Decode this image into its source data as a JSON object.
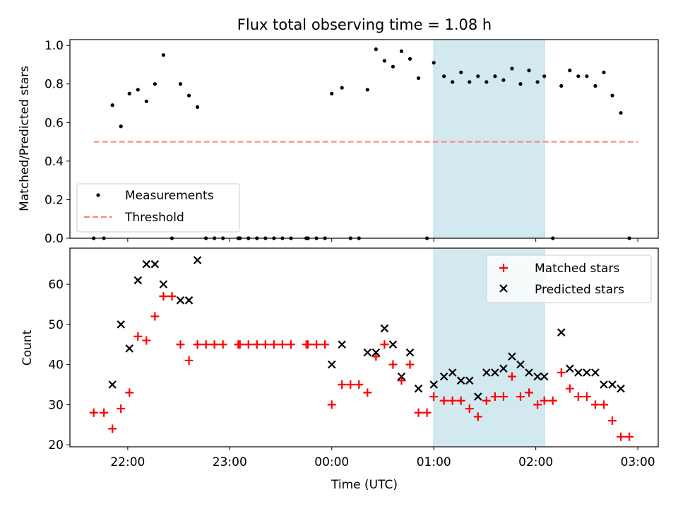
{
  "chart_data": [
    {
      "type": "scatter",
      "title": "Flux total observing time = 1.08 h",
      "xlabel": "",
      "ylabel": "Matched/Predicted stars",
      "xlim": [
        "21:26",
        "03:12"
      ],
      "ylim": [
        0,
        1.03
      ],
      "yticks": [
        "0.0",
        "0.2",
        "0.4",
        "0.6",
        "0.8",
        "1.0"
      ],
      "shaded_region": [
        "01:00",
        "02:05"
      ],
      "legend_position": "lower-left",
      "legend": {
        "measurements": "Measurements",
        "threshold": "Threshold"
      },
      "colors": {
        "measurements": "#000000",
        "threshold": "#ff7f7f",
        "shade": "#d3e9f0"
      },
      "threshold": {
        "value": 0.5,
        "x": [
          "21:40",
          "03:00"
        ]
      },
      "series": [
        {
          "name": "Measurements",
          "points": [
            [
              "21:40",
              0.0
            ],
            [
              "21:46",
              0.0
            ],
            [
              "21:51",
              0.69
            ],
            [
              "21:56",
              0.58
            ],
            [
              "22:01",
              0.75
            ],
            [
              "22:06",
              0.77
            ],
            [
              "22:11",
              0.71
            ],
            [
              "22:16",
              0.8
            ],
            [
              "22:21",
              0.95
            ],
            [
              "22:26",
              0.0
            ],
            [
              "22:31",
              0.8
            ],
            [
              "22:36",
              0.74
            ],
            [
              "22:41",
              0.68
            ],
            [
              "22:46",
              0.0
            ],
            [
              "22:51",
              0.0
            ],
            [
              "22:56",
              0.0
            ],
            [
              "23:05",
              0.0
            ],
            [
              "23:06",
              0.0
            ],
            [
              "23:11",
              0.0
            ],
            [
              "23:16",
              0.0
            ],
            [
              "23:21",
              0.0
            ],
            [
              "23:26",
              0.0
            ],
            [
              "23:31",
              0.0
            ],
            [
              "23:36",
              0.0
            ],
            [
              "23:45",
              0.0
            ],
            [
              "23:46",
              0.0
            ],
            [
              "23:51",
              0.0
            ],
            [
              "23:56",
              0.0
            ],
            [
              "00:00",
              0.75
            ],
            [
              "00:06",
              0.78
            ],
            [
              "00:11",
              0.0
            ],
            [
              "00:16",
              0.0
            ],
            [
              "00:21",
              0.77
            ],
            [
              "00:26",
              0.98
            ],
            [
              "00:31",
              0.92
            ],
            [
              "00:36",
              0.89
            ],
            [
              "00:41",
              0.97
            ],
            [
              "00:46",
              0.93
            ],
            [
              "00:51",
              0.83
            ],
            [
              "00:56",
              0.0
            ],
            [
              "01:00",
              0.91
            ],
            [
              "01:06",
              0.84
            ],
            [
              "01:11",
              0.81
            ],
            [
              "01:16",
              0.86
            ],
            [
              "01:21",
              0.81
            ],
            [
              "01:26",
              0.84
            ],
            [
              "01:31",
              0.81
            ],
            [
              "01:36",
              0.84
            ],
            [
              "01:41",
              0.82
            ],
            [
              "01:46",
              0.88
            ],
            [
              "01:51",
              0.8
            ],
            [
              "01:56",
              0.87
            ],
            [
              "02:01",
              0.81
            ],
            [
              "02:05",
              0.84
            ],
            [
              "02:10",
              0.0
            ],
            [
              "02:15",
              0.79
            ],
            [
              "02:20",
              0.87
            ],
            [
              "02:25",
              0.84
            ],
            [
              "02:30",
              0.84
            ],
            [
              "02:35",
              0.79
            ],
            [
              "02:40",
              0.86
            ],
            [
              "02:45",
              0.74
            ],
            [
              "02:50",
              0.65
            ],
            [
              "02:55",
              0.0
            ]
          ]
        }
      ]
    },
    {
      "type": "scatter",
      "title": "",
      "xlabel": "Time (UTC)",
      "ylabel": "Count",
      "xlim": [
        "21:26",
        "03:12"
      ],
      "ylim": [
        19.5,
        69
      ],
      "xticks": [
        "22:00",
        "23:00",
        "00:00",
        "01:00",
        "02:00",
        "03:00"
      ],
      "yticks": [
        "20",
        "30",
        "40",
        "50",
        "60"
      ],
      "shaded_region": [
        "01:00",
        "02:05"
      ],
      "legend_position": "top-right",
      "colors": {
        "matched": "#ff0000",
        "predicted": "#000000",
        "shade": "#d3e9f0"
      },
      "series": [
        {
          "name": "Matched stars",
          "points": [
            [
              "21:40",
              28
            ],
            [
              "21:46",
              28
            ],
            [
              "21:51",
              24
            ],
            [
              "21:56",
              29
            ],
            [
              "22:01",
              33
            ],
            [
              "22:06",
              47
            ],
            [
              "22:11",
              46
            ],
            [
              "22:16",
              52
            ],
            [
              "22:21",
              57
            ],
            [
              "22:26",
              57
            ],
            [
              "22:31",
              45
            ],
            [
              "22:36",
              41
            ],
            [
              "22:41",
              45
            ],
            [
              "22:46",
              45
            ],
            [
              "22:51",
              45
            ],
            [
              "22:56",
              45
            ],
            [
              "23:05",
              45
            ],
            [
              "23:06",
              45
            ],
            [
              "23:11",
              45
            ],
            [
              "23:16",
              45
            ],
            [
              "23:21",
              45
            ],
            [
              "23:26",
              45
            ],
            [
              "23:31",
              45
            ],
            [
              "23:36",
              45
            ],
            [
              "23:45",
              45
            ],
            [
              "23:46",
              45
            ],
            [
              "23:51",
              45
            ],
            [
              "23:56",
              45
            ],
            [
              "00:00",
              30
            ],
            [
              "00:06",
              35
            ],
            [
              "00:11",
              35
            ],
            [
              "00:16",
              35
            ],
            [
              "00:21",
              33
            ],
            [
              "00:26",
              42
            ],
            [
              "00:31",
              45
            ],
            [
              "00:36",
              40
            ],
            [
              "00:41",
              36
            ],
            [
              "00:46",
              40
            ],
            [
              "00:51",
              28
            ],
            [
              "00:56",
              28
            ],
            [
              "01:00",
              32
            ],
            [
              "01:06",
              31
            ],
            [
              "01:11",
              31
            ],
            [
              "01:16",
              31
            ],
            [
              "01:21",
              29
            ],
            [
              "01:26",
              27
            ],
            [
              "01:31",
              31
            ],
            [
              "01:36",
              32
            ],
            [
              "01:41",
              32
            ],
            [
              "01:46",
              37
            ],
            [
              "01:51",
              32
            ],
            [
              "01:56",
              33
            ],
            [
              "02:01",
              30
            ],
            [
              "02:05",
              31
            ],
            [
              "02:10",
              31
            ],
            [
              "02:15",
              38
            ],
            [
              "02:20",
              34
            ],
            [
              "02:25",
              32
            ],
            [
              "02:30",
              32
            ],
            [
              "02:35",
              30
            ],
            [
              "02:40",
              30
            ],
            [
              "02:45",
              26
            ],
            [
              "02:50",
              22
            ],
            [
              "02:55",
              22
            ]
          ]
        },
        {
          "name": "Predicted stars",
          "points": [
            [
              "21:51",
              35
            ],
            [
              "21:56",
              50
            ],
            [
              "22:01",
              44
            ],
            [
              "22:06",
              61
            ],
            [
              "22:11",
              65
            ],
            [
              "22:16",
              65
            ],
            [
              "22:21",
              60
            ],
            [
              "22:31",
              56
            ],
            [
              "22:36",
              56
            ],
            [
              "22:41",
              66
            ],
            [
              "00:00",
              40
            ],
            [
              "00:06",
              45
            ],
            [
              "00:21",
              43
            ],
            [
              "00:26",
              43
            ],
            [
              "00:31",
              49
            ],
            [
              "00:36",
              45
            ],
            [
              "00:41",
              37
            ],
            [
              "00:46",
              43
            ],
            [
              "00:51",
              34
            ],
            [
              "01:00",
              35
            ],
            [
              "01:06",
              37
            ],
            [
              "01:11",
              38
            ],
            [
              "01:16",
              36
            ],
            [
              "01:21",
              36
            ],
            [
              "01:26",
              32
            ],
            [
              "01:31",
              38
            ],
            [
              "01:36",
              38
            ],
            [
              "01:41",
              39
            ],
            [
              "01:46",
              42
            ],
            [
              "01:51",
              40
            ],
            [
              "01:56",
              38
            ],
            [
              "02:01",
              37
            ],
            [
              "02:05",
              37
            ],
            [
              "02:15",
              48
            ],
            [
              "02:20",
              39
            ],
            [
              "02:25",
              38
            ],
            [
              "02:30",
              38
            ],
            [
              "02:35",
              38
            ],
            [
              "02:40",
              35
            ],
            [
              "02:45",
              35
            ],
            [
              "02:50",
              34
            ]
          ]
        }
      ]
    }
  ]
}
